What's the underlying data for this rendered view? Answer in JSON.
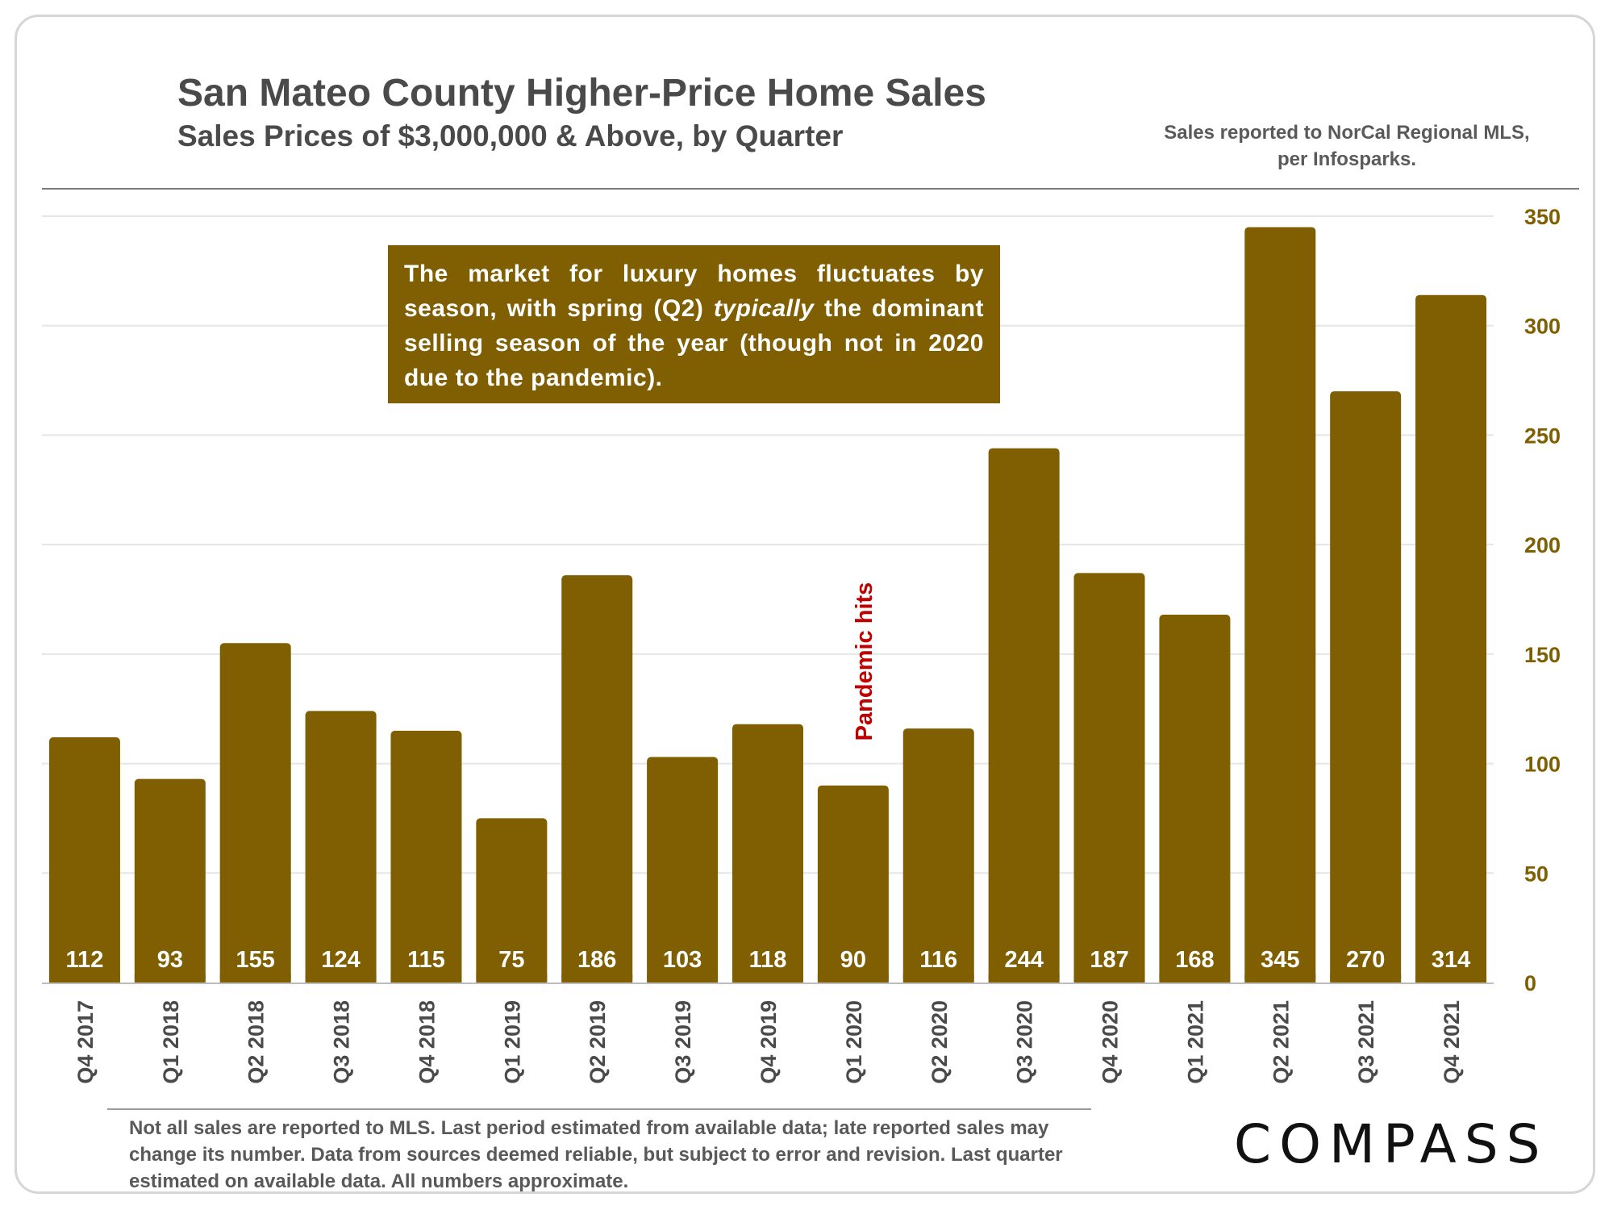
{
  "header": {
    "title": "San Mateo County Higher-Price Home Sales",
    "subtitle": "Sales Prices of $3,000,000 & Above, by Quarter",
    "source_note": "Sales reported to NorCal Regional MLS, per Infosparks."
  },
  "callout": {
    "part1": "The market for luxury homes fluctuates by season, with spring (Q2) ",
    "emphasis": "typically",
    "part2": " the dominant selling season of the year (though not in 2020 due to the pandemic)."
  },
  "annotation": {
    "text": "Pandemic hits",
    "color": "#c00000"
  },
  "footnote": "Not all sales are reported to MLS. Last period estimated from available data; late reported sales may change its number. Data from sources deemed reliable, but subject to error and revision. Last quarter estimated on available data. All numbers  approximate.",
  "logo": "COMPASS",
  "colors": {
    "bar": "#7f5f01",
    "axis_labels": "#7f5f01",
    "grid": "#e6e6e6",
    "text": "#4a4a4a"
  },
  "chart_data": {
    "type": "bar",
    "title": "San Mateo County Higher-Price Home Sales",
    "subtitle": "Sales Prices of $3,000,000 & Above, by Quarter",
    "categories": [
      "Q4 2017",
      "Q1 2018",
      "Q2 2018",
      "Q3 2018",
      "Q4 2018",
      "Q1 2019",
      "Q2 2019",
      "Q3 2019",
      "Q4 2019",
      "Q1 2020",
      "Q2 2020",
      "Q3 2020",
      "Q4 2020",
      "Q1 2021",
      "Q2 2021",
      "Q3 2021",
      "Q4 2021"
    ],
    "values": [
      112,
      93,
      155,
      124,
      115,
      75,
      186,
      103,
      118,
      90,
      116,
      244,
      187,
      168,
      345,
      270,
      314
    ],
    "value_labels": [
      "112",
      "93",
      "155",
      "124",
      "115",
      "75",
      "186",
      "103",
      "118",
      "90",
      "116",
      "244",
      "187",
      "168",
      "345",
      "270",
      "314"
    ],
    "ylim": [
      0,
      350
    ],
    "yticks": [
      0,
      50,
      100,
      150,
      200,
      250,
      300,
      350
    ],
    "ytick_labels": [
      "0",
      "50",
      "100",
      "150",
      "200",
      "250",
      "300",
      "350"
    ],
    "y_axis_side": "right",
    "grid": true,
    "legend": "none",
    "annotation_category": "Q1 2020"
  }
}
